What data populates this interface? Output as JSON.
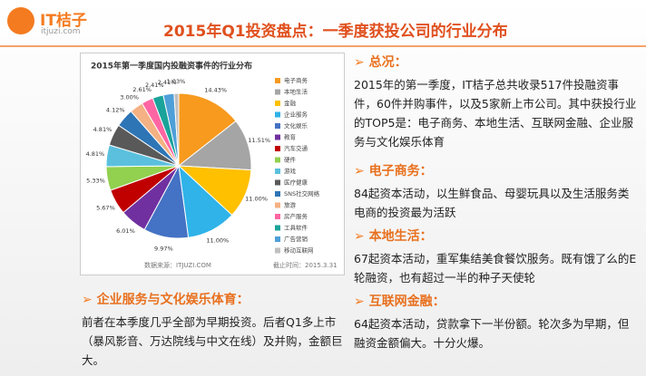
{
  "header": {
    "logo": "IT桔子",
    "logo_sub": "itjuzi.com",
    "title": "2015年Q1投资盘点：一季度获投公司的行业分布"
  },
  "chart_data": {
    "type": "pie",
    "title": "2015年第一季度国内投融资事件的行业分布",
    "categories": [
      "电子商务",
      "本地生活",
      "金融",
      "企业服务",
      "文化娱乐",
      "教育",
      "汽车交通",
      "硬件",
      "游戏",
      "医疗健康",
      "SNS社交网络",
      "旅游",
      "房产服务",
      "工具软件",
      "广告营销",
      "移动互联网"
    ],
    "values": [
      14.43,
      11.51,
      11.0,
      11.0,
      9.97,
      6.01,
      5.67,
      5.33,
      4.81,
      4.81,
      4.12,
      3.0,
      2.61,
      2.41,
      2.41,
      1.03
    ],
    "value_labels": [
      "14.43%",
      "11.51%",
      "11.00%",
      "11.00%",
      "9.97%",
      "6.01%",
      "5.67%",
      "5.33%",
      "4.81%",
      "4.81%",
      "4.12%",
      "3.00%",
      "2.61%",
      "2.41%",
      "2.41%",
      "1.03%"
    ],
    "colors": [
      "#f79a1e",
      "#a5a5a5",
      "#ffc000",
      "#2fb3e8",
      "#4472c4",
      "#7030a0",
      "#c00000",
      "#92d050",
      "#5bc0de",
      "#595959",
      "#2e75b6",
      "#f4b183",
      "#ff66a3",
      "#1aa39a",
      "#4f9fd8",
      "#bfbfbf"
    ],
    "source": "数据来源：ITJUZI.COM",
    "date": "截止时间：2015.3.31"
  },
  "sections": [
    {
      "heading": "总况：",
      "text": "2015年的第一季度，IT桔子总共收录517件投融资事件，60件并购事件，以及5家新上市公司。其中获投行业的TOP5是：电子商务、本地生活、互联网金融、企业服务与文化娱乐体育"
    },
    {
      "heading": "电子商务：",
      "text": "84起资本活动，以生鲜食品、母婴玩具以及生活服务类电商的投资最为活跃"
    },
    {
      "heading": "本地生活：",
      "text": "67起资本活动，重军集结美食餐饮服务。既有饿了么的E轮融资，也有超过一半的种子天使轮"
    },
    {
      "heading": "互联网金融：",
      "text": "64起资本活动，贷款拿下一半份额。轮次多为早期，但融资金额偏大。十分火爆。"
    },
    {
      "heading": "企业服务与文化娱乐体育：",
      "text": "前者在本季度几乎全部为早期投资。后者Q1多上市（暴风影音、万达院线与中文在线）及并购，金额巨大。"
    }
  ]
}
